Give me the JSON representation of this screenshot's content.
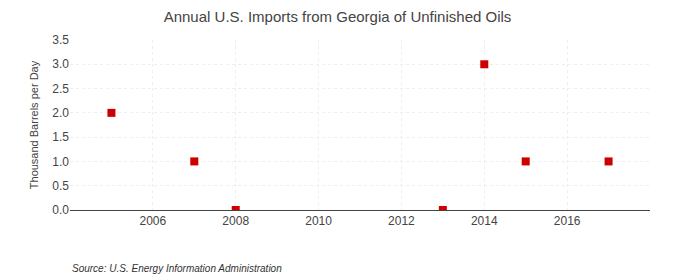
{
  "chart_data": {
    "type": "scatter",
    "title": "Annual U.S. Imports from Georgia of Unfinished Oils",
    "ylabel": "Thousand Barrels per Day",
    "annotations": [
      "Source: U.S. Energy Information Administration"
    ],
    "x": [
      2005,
      2007,
      2008,
      2013,
      2014,
      2015,
      2017
    ],
    "values": [
      2.0,
      1.0,
      0.0,
      0.0,
      3.0,
      1.0,
      1.0
    ],
    "color": "#cc0000",
    "marker": "square",
    "xlim": [
      2004.0,
      2018.0
    ],
    "xticks": [
      2006,
      2008,
      2010,
      2012,
      2014,
      2016
    ],
    "ylim": [
      0.0,
      3.5
    ],
    "yticks": [
      {
        "value": 0.0,
        "label": "0.0"
      },
      0.5,
      {
        "value": 1.0,
        "label": "1.0"
      },
      1.5,
      {
        "value": 2.0,
        "label": "2.0"
      },
      2.5,
      {
        "value": 3.0,
        "label": "3.0"
      },
      3.5
    ],
    "grid": true
  }
}
